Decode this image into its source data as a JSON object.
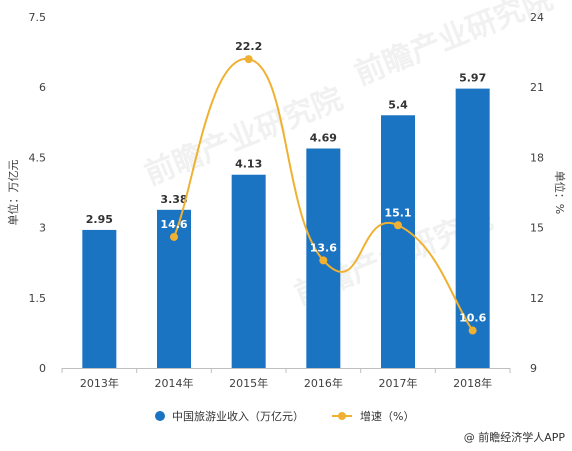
{
  "chart_data": {
    "type": "bar",
    "categories": [
      "2013年",
      "2014年",
      "2015年",
      "2016年",
      "2017年",
      "2018年"
    ],
    "series": [
      {
        "name": "中国旅游业收入（万亿元）",
        "type": "bar",
        "axis": "left",
        "values": [
          2.95,
          3.38,
          4.13,
          4.69,
          5.4,
          5.97
        ],
        "labels": [
          "2.95",
          "3.38",
          "4.13",
          "4.69",
          "5.4",
          "5.97"
        ],
        "color": "#1a74c2"
      },
      {
        "name": "增速（%）",
        "type": "line",
        "axis": "right",
        "values": [
          null,
          14.6,
          22.2,
          13.6,
          15.1,
          10.6
        ],
        "labels": [
          "",
          "14.6",
          "22.2",
          "13.6",
          "15.1",
          "10.6"
        ],
        "color": "#f0b133"
      }
    ],
    "y_left": {
      "label": "单位：万亿元",
      "ylim": [
        0,
        7.5
      ],
      "ticks": [
        "0",
        "1.5",
        "3",
        "4.5",
        "6",
        "7.5"
      ]
    },
    "y_right": {
      "label": "单位：%",
      "ylim": [
        9,
        24
      ],
      "ticks": [
        "9",
        "12",
        "15",
        "18",
        "21",
        "24"
      ]
    },
    "grid": false,
    "legend_position": "bottom-center",
    "smooth_line": true
  },
  "watermark": "前瞻产业研究院",
  "source": "@ 前瞻经济学人APP"
}
